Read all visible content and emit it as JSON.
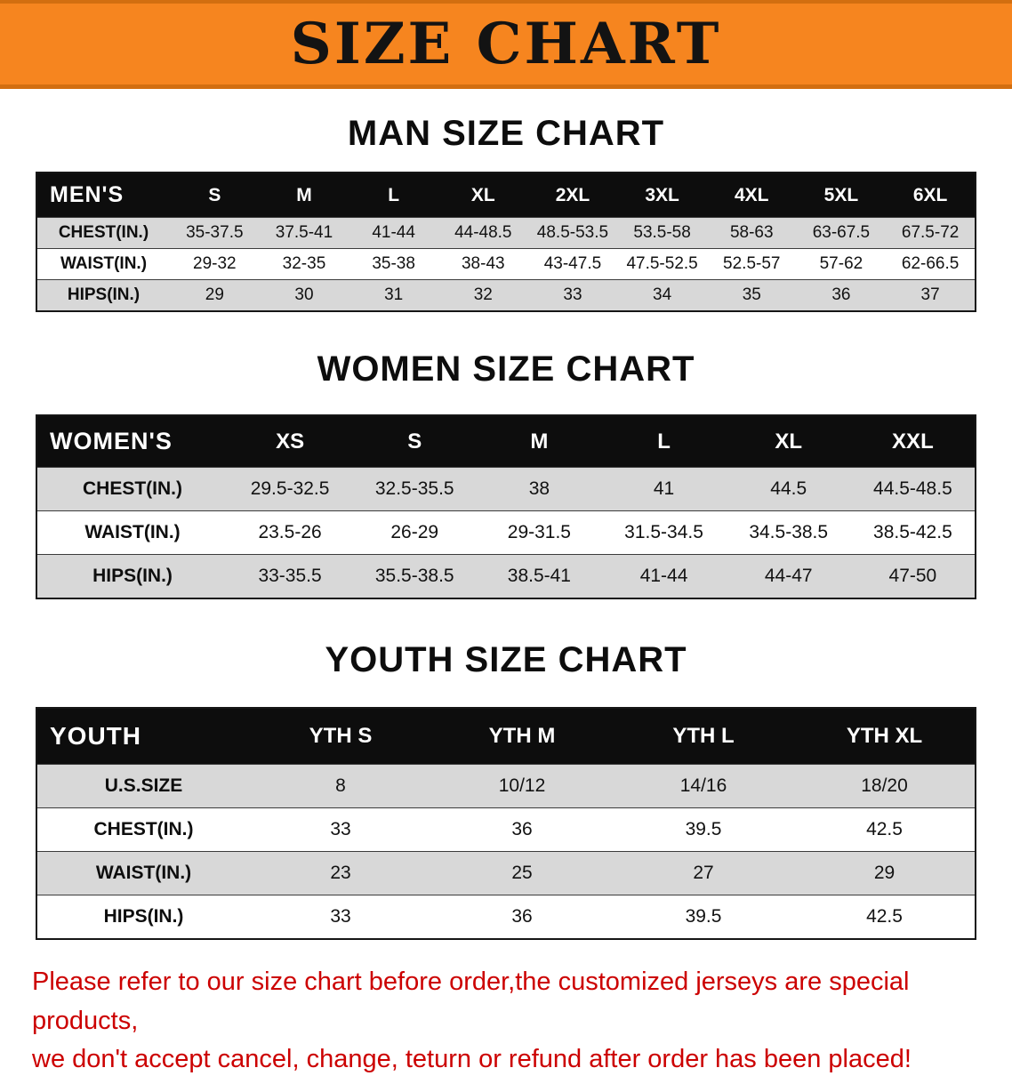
{
  "banner": {
    "title": "SIZE CHART"
  },
  "colors": {
    "banner_bg": "#F6851F",
    "banner_edge": "#D26E10",
    "header_bar": "#0D0D0D",
    "stripe": "#D8D8D8",
    "footer_text": "#CC0000"
  },
  "tables": {
    "men": {
      "heading": "MAN SIZE CHART",
      "corner_label": "MEN'S",
      "columns": [
        "S",
        "M",
        "L",
        "XL",
        "2XL",
        "3XL",
        "4XL",
        "5XL",
        "6XL"
      ],
      "rows": [
        {
          "label": "CHEST(IN.)",
          "values": [
            "35-37.5",
            "37.5-41",
            "41-44",
            "44-48.5",
            "48.5-53.5",
            "53.5-58",
            "58-63",
            "63-67.5",
            "67.5-72"
          ]
        },
        {
          "label": "WAIST(IN.)",
          "values": [
            "29-32",
            "32-35",
            "35-38",
            "38-43",
            "43-47.5",
            "47.5-52.5",
            "52.5-57",
            "57-62",
            "62-66.5"
          ]
        },
        {
          "label": "HIPS(IN.)",
          "values": [
            "29",
            "30",
            "31",
            "32",
            "33",
            "34",
            "35",
            "36",
            "37"
          ]
        }
      ]
    },
    "women": {
      "heading": "WOMEN SIZE CHART",
      "corner_label": "WOMEN'S",
      "columns": [
        "XS",
        "S",
        "M",
        "L",
        "XL",
        "XXL"
      ],
      "rows": [
        {
          "label": "CHEST(IN.)",
          "values": [
            "29.5-32.5",
            "32.5-35.5",
            "38",
            "41",
            "44.5",
            "44.5-48.5"
          ]
        },
        {
          "label": "WAIST(IN.)",
          "values": [
            "23.5-26",
            "26-29",
            "29-31.5",
            "31.5-34.5",
            "34.5-38.5",
            "38.5-42.5"
          ]
        },
        {
          "label": "HIPS(IN.)",
          "values": [
            "33-35.5",
            "35.5-38.5",
            "38.5-41",
            "41-44",
            "44-47",
            "47-50"
          ]
        }
      ]
    },
    "youth": {
      "heading": "YOUTH SIZE CHART",
      "corner_label": "YOUTH",
      "columns": [
        "YTH S",
        "YTH M",
        "YTH L",
        "YTH XL"
      ],
      "rows": [
        {
          "label": "U.S.SIZE",
          "values": [
            "8",
            "10/12",
            "14/16",
            "18/20"
          ]
        },
        {
          "label": "CHEST(IN.)",
          "values": [
            "33",
            "36",
            "39.5",
            "42.5"
          ]
        },
        {
          "label": "WAIST(IN.)",
          "values": [
            "23",
            "25",
            "27",
            "29"
          ]
        },
        {
          "label": "HIPS(IN.)",
          "values": [
            "33",
            "36",
            "39.5",
            "42.5"
          ]
        }
      ]
    }
  },
  "footer": {
    "line1": "Please refer to our size chart before order,the customized jerseys are special products,",
    "line2": "we don't accept cancel, change, teturn or refund after order has been placed!"
  }
}
